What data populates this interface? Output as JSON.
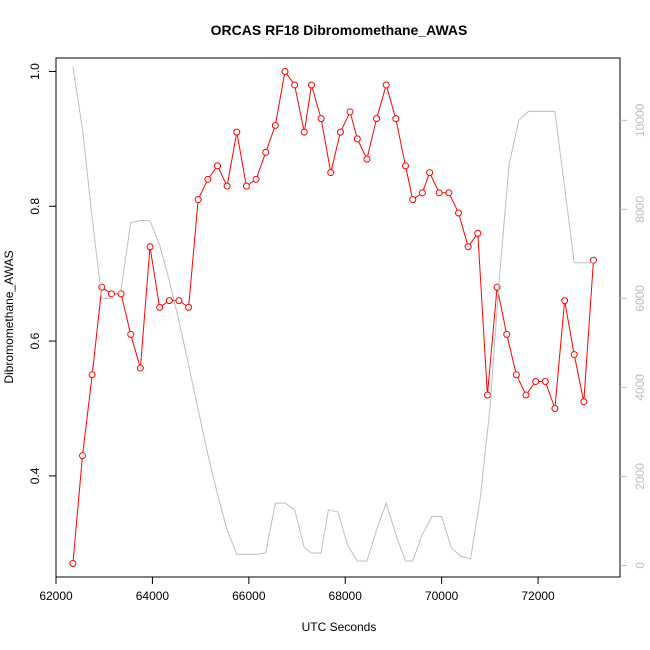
{
  "chart_data": {
    "type": "line",
    "title": "ORCAS RF18 Dibromomethane_AWAS",
    "xlabel": "UTC Seconds",
    "ylabel": "Dibromomethane_AWAS",
    "xlim": [
      62000,
      73700
    ],
    "ylim": [
      0.25,
      1.02
    ],
    "y2lim": [
      -260,
      11400
    ],
    "x_ticks": [
      62000,
      64000,
      66000,
      68000,
      70000,
      72000
    ],
    "x_tick_labels": [
      "62000",
      "64000",
      "66000",
      "68000",
      "70000",
      "72000"
    ],
    "y_ticks": [
      0.4,
      0.6,
      0.8,
      1.0
    ],
    "y_tick_labels": [
      "0.4",
      "0.6",
      "0.8",
      "1.0"
    ],
    "y2_ticks": [
      0,
      2000,
      4000,
      6000,
      8000,
      10000
    ],
    "y2_tick_labels": [
      "0",
      "2000",
      "4000",
      "6000",
      "8000",
      "10000"
    ],
    "series": [
      {
        "color": "#ff0000",
        "axis": "left",
        "marker": "open-circle",
        "points": [
          [
            62350,
            0.27
          ],
          [
            62550,
            0.43
          ],
          [
            62750,
            0.55
          ],
          [
            62950,
            0.68
          ],
          [
            63150,
            0.67
          ],
          [
            63350,
            0.67
          ],
          [
            63550,
            0.61
          ],
          [
            63750,
            0.56
          ],
          [
            63950,
            0.74
          ],
          [
            64150,
            0.65
          ],
          [
            64350,
            0.66
          ],
          [
            64550,
            0.66
          ],
          [
            64750,
            0.65
          ],
          [
            64950,
            0.81
          ],
          [
            65150,
            0.84
          ],
          [
            65350,
            0.86
          ],
          [
            65550,
            0.83
          ],
          [
            65750,
            0.91
          ],
          [
            65950,
            0.83
          ],
          [
            66150,
            0.84
          ],
          [
            66350,
            0.88
          ],
          [
            66550,
            0.92
          ],
          [
            66750,
            1.0
          ],
          [
            66950,
            0.98
          ],
          [
            67150,
            0.91
          ],
          [
            67300,
            0.98
          ],
          [
            67500,
            0.93
          ],
          [
            67700,
            0.85
          ],
          [
            67900,
            0.91
          ],
          [
            68100,
            0.94
          ],
          [
            68250,
            0.9
          ],
          [
            68450,
            0.87
          ],
          [
            68650,
            0.93
          ],
          [
            68850,
            0.98
          ],
          [
            69050,
            0.93
          ],
          [
            69250,
            0.86
          ],
          [
            69400,
            0.81
          ],
          [
            69600,
            0.82
          ],
          [
            69750,
            0.85
          ],
          [
            69950,
            0.82
          ],
          [
            70150,
            0.82
          ],
          [
            70350,
            0.79
          ],
          [
            70550,
            0.74
          ],
          [
            70750,
            0.76
          ],
          [
            70950,
            0.52
          ],
          [
            71150,
            0.68
          ],
          [
            71350,
            0.61
          ],
          [
            71550,
            0.55
          ],
          [
            71750,
            0.52
          ],
          [
            71950,
            0.54
          ],
          [
            72150,
            0.54
          ],
          [
            72350,
            0.5
          ],
          [
            72550,
            0.66
          ],
          [
            72750,
            0.58
          ],
          [
            72950,
            0.51
          ],
          [
            73150,
            0.72
          ]
        ]
      },
      {
        "color": "#bebebe",
        "axis": "right",
        "marker": "none",
        "points": [
          [
            62350,
            11200
          ],
          [
            62550,
            9800
          ],
          [
            62750,
            7800
          ],
          [
            62950,
            6000
          ],
          [
            63150,
            6000
          ],
          [
            63350,
            6200
          ],
          [
            63550,
            7700
          ],
          [
            63750,
            7750
          ],
          [
            63950,
            7750
          ],
          [
            64150,
            7200
          ],
          [
            64350,
            6400
          ],
          [
            64550,
            5500
          ],
          [
            64750,
            4500
          ],
          [
            64950,
            3500
          ],
          [
            65150,
            2500
          ],
          [
            65350,
            1600
          ],
          [
            65550,
            800
          ],
          [
            65750,
            250
          ],
          [
            65950,
            250
          ],
          [
            66150,
            250
          ],
          [
            66350,
            280
          ],
          [
            66550,
            1400
          ],
          [
            66750,
            1400
          ],
          [
            66950,
            1250
          ],
          [
            67150,
            400
          ],
          [
            67300,
            280
          ],
          [
            67500,
            280
          ],
          [
            67650,
            1250
          ],
          [
            67850,
            1200
          ],
          [
            68050,
            450
          ],
          [
            68250,
            100
          ],
          [
            68450,
            100
          ],
          [
            68650,
            800
          ],
          [
            68850,
            1400
          ],
          [
            69050,
            700
          ],
          [
            69250,
            100
          ],
          [
            69400,
            100
          ],
          [
            69600,
            700
          ],
          [
            69800,
            1100
          ],
          [
            70000,
            1100
          ],
          [
            70200,
            400
          ],
          [
            70400,
            200
          ],
          [
            70600,
            150
          ],
          [
            70800,
            1500
          ],
          [
            71000,
            3500
          ],
          [
            71200,
            6500
          ],
          [
            71400,
            9000
          ],
          [
            71600,
            10000
          ],
          [
            71800,
            10200
          ],
          [
            72000,
            10200
          ],
          [
            72150,
            10200
          ],
          [
            72350,
            10200
          ],
          [
            72550,
            8500
          ],
          [
            72750,
            6800
          ],
          [
            72950,
            6800
          ],
          [
            73150,
            6800
          ]
        ]
      }
    ]
  }
}
